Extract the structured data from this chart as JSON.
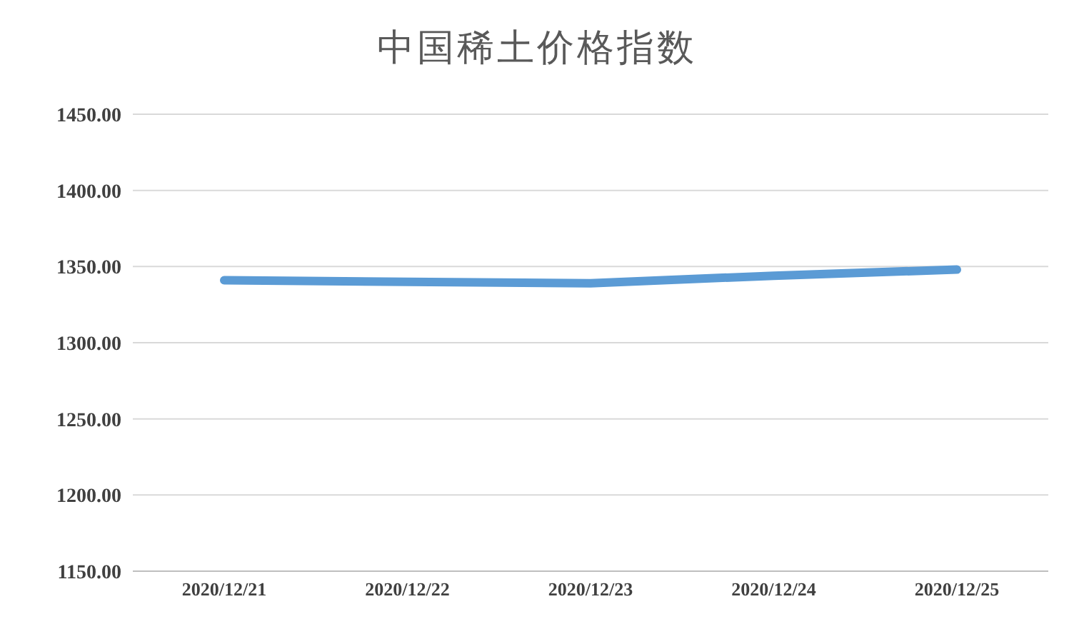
{
  "chart_data": {
    "type": "line",
    "title": "中国稀土价格指数",
    "categories": [
      "2020/12/21",
      "2020/12/22",
      "2020/12/23",
      "2020/12/24",
      "2020/12/25"
    ],
    "series": [
      {
        "color": "#5b9bd5",
        "values": [
          1341,
          1340,
          1339,
          1344,
          1348
        ]
      }
    ],
    "ylim": [
      1150,
      1450
    ],
    "yticks": [
      {
        "value": 1150,
        "label": "1150.00"
      },
      {
        "value": 1200,
        "label": "1200.00"
      },
      {
        "value": 1250,
        "label": "1250.00"
      },
      {
        "value": 1300,
        "label": "1300.00"
      },
      {
        "value": 1350,
        "label": "1350.00"
      },
      {
        "value": 1400,
        "label": "1400.00"
      },
      {
        "value": 1450,
        "label": "1450.00"
      }
    ],
    "grid": "y",
    "legend": false,
    "marker": "none",
    "line_style": "solid"
  }
}
